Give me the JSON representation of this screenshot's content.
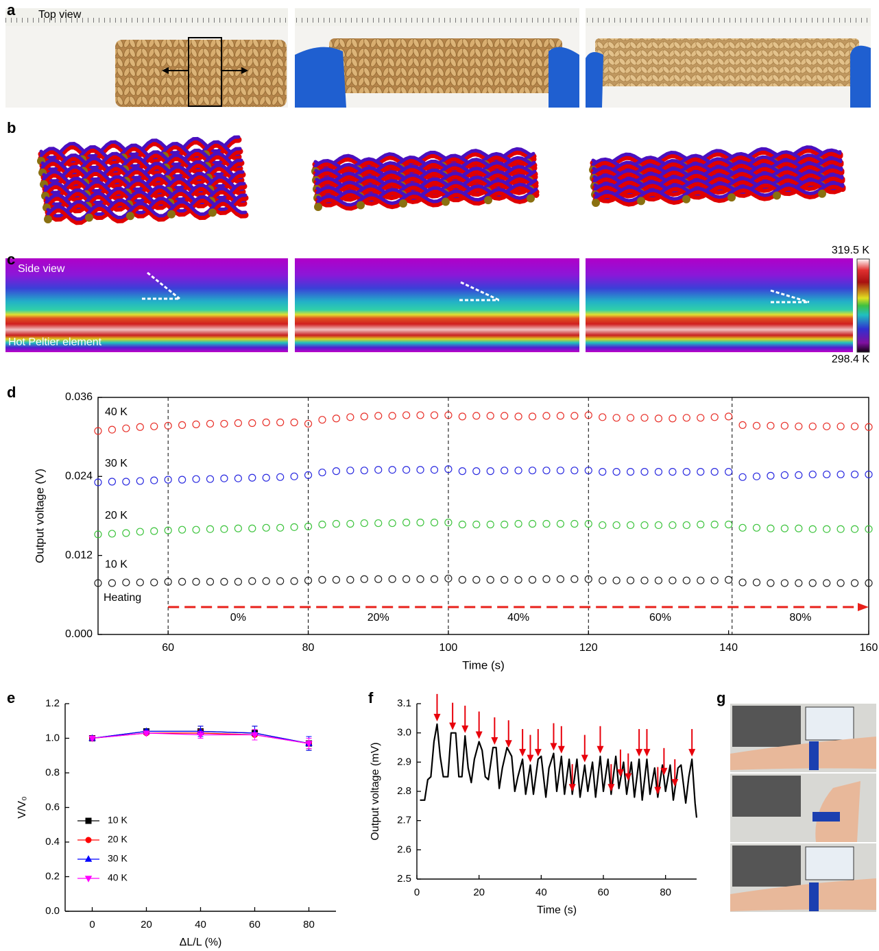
{
  "panel_labels": [
    "a",
    "b",
    "c",
    "d",
    "e",
    "f",
    "g"
  ],
  "photo_labels": {
    "top_view": "Top view",
    "side_view": "Side view",
    "hot_element": "Hot Peltier element",
    "scale_max": "319.5 K",
    "scale_min": "298.4 K"
  },
  "chart_data": [
    {
      "type": "scatter",
      "xlabel": "Time (s)",
      "ylabel": "Output voltage (V)",
      "xlim": [
        50,
        160
      ],
      "ylim": [
        0,
        0.036
      ],
      "xticks": [
        60,
        80,
        100,
        120,
        140,
        160
      ],
      "yticks": [
        {
          "value": 0,
          "label": "0.000"
        },
        0.012,
        0.024,
        0.036
      ],
      "vlines": [
        60,
        80,
        100,
        120,
        140.5
      ],
      "regions": [
        "0%",
        "20%",
        "40%",
        "60%",
        "80%"
      ],
      "annotation": "Heating",
      "arrow_color": "#e8201a",
      "x": [
        50,
        52,
        54,
        56,
        58,
        60,
        62,
        64,
        66,
        68,
        70,
        72,
        74,
        76,
        78,
        80,
        82,
        84,
        86,
        88,
        90,
        92,
        94,
        96,
        98,
        100,
        102,
        104,
        106,
        108,
        110,
        112,
        114,
        116,
        118,
        120,
        122,
        124,
        126,
        128,
        130,
        132,
        134,
        136,
        138,
        140,
        142,
        144,
        146,
        148,
        150,
        152,
        154,
        156,
        158,
        160
      ],
      "series": [
        {
          "name": "40 K",
          "color": "#e8312a",
          "values": [
            0.0309,
            0.0311,
            0.0313,
            0.0315,
            0.0316,
            0.0317,
            0.0318,
            0.0319,
            0.032,
            0.032,
            0.0321,
            0.0321,
            0.0322,
            0.0322,
            0.0322,
            0.032,
            0.0326,
            0.0328,
            0.033,
            0.0331,
            0.0332,
            0.0332,
            0.0333,
            0.0333,
            0.0333,
            0.0333,
            0.0331,
            0.0332,
            0.0332,
            0.0332,
            0.0331,
            0.0331,
            0.0332,
            0.0332,
            0.0332,
            0.0333,
            0.033,
            0.0329,
            0.0329,
            0.0329,
            0.0328,
            0.0328,
            0.0329,
            0.0329,
            0.033,
            0.0331,
            0.0318,
            0.0317,
            0.0317,
            0.0317,
            0.0316,
            0.0316,
            0.0316,
            0.0316,
            0.0316,
            0.0315
          ]
        },
        {
          "name": "30 K",
          "color": "#2a2ae0",
          "values": [
            0.0231,
            0.0232,
            0.0232,
            0.0233,
            0.0234,
            0.0235,
            0.0235,
            0.0236,
            0.0236,
            0.0237,
            0.0237,
            0.0238,
            0.0238,
            0.0239,
            0.024,
            0.0242,
            0.0246,
            0.0248,
            0.0249,
            0.0249,
            0.025,
            0.025,
            0.025,
            0.025,
            0.025,
            0.0251,
            0.0248,
            0.0248,
            0.0248,
            0.0249,
            0.0249,
            0.0249,
            0.0249,
            0.0249,
            0.0249,
            0.0249,
            0.0247,
            0.0247,
            0.0247,
            0.0247,
            0.0247,
            0.0247,
            0.0247,
            0.0247,
            0.0247,
            0.0247,
            0.0239,
            0.024,
            0.0241,
            0.0242,
            0.0242,
            0.0243,
            0.0243,
            0.0243,
            0.0243,
            0.0243
          ]
        },
        {
          "name": "20 K",
          "color": "#3ec43e",
          "values": [
            0.0152,
            0.0153,
            0.0154,
            0.0156,
            0.0157,
            0.0158,
            0.0159,
            0.0159,
            0.016,
            0.016,
            0.0161,
            0.0161,
            0.0162,
            0.0162,
            0.0163,
            0.0164,
            0.0167,
            0.0168,
            0.0168,
            0.0169,
            0.0169,
            0.0169,
            0.017,
            0.017,
            0.017,
            0.017,
            0.0167,
            0.0167,
            0.0167,
            0.0167,
            0.0168,
            0.0168,
            0.0168,
            0.0168,
            0.0168,
            0.0168,
            0.0166,
            0.0166,
            0.0166,
            0.0166,
            0.0166,
            0.0166,
            0.0166,
            0.0167,
            0.0167,
            0.0167,
            0.0162,
            0.0162,
            0.0161,
            0.0161,
            0.0161,
            0.016,
            0.016,
            0.016,
            0.016,
            0.016
          ]
        },
        {
          "name": "10 K",
          "color": "#222222",
          "values": [
            0.0078,
            0.0078,
            0.0079,
            0.0079,
            0.0079,
            0.008,
            0.008,
            0.008,
            0.008,
            0.008,
            0.008,
            0.0081,
            0.0081,
            0.0081,
            0.0081,
            0.0082,
            0.0083,
            0.0083,
            0.0083,
            0.0084,
            0.0084,
            0.0084,
            0.0084,
            0.0084,
            0.0084,
            0.0085,
            0.0083,
            0.0083,
            0.0083,
            0.0083,
            0.0083,
            0.0083,
            0.0084,
            0.0084,
            0.0084,
            0.0084,
            0.0082,
            0.0082,
            0.0082,
            0.0082,
            0.0082,
            0.0082,
            0.0082,
            0.0082,
            0.0082,
            0.0083,
            0.0079,
            0.0079,
            0.0078,
            0.0078,
            0.0078,
            0.0078,
            0.0078,
            0.0078,
            0.0078,
            0.0078
          ]
        }
      ]
    },
    {
      "type": "line",
      "xlabel": "ΔL/L (%)",
      "ylabel": "V/V₀",
      "xlim": [
        -10,
        90
      ],
      "ylim": [
        0,
        1.2
      ],
      "xticks": [
        0,
        20,
        40,
        60,
        80
      ],
      "yticks": [
        {
          "value": 0,
          "label": "0.0"
        },
        0.2,
        0.4,
        0.6,
        0.8,
        {
          "value": 1,
          "label": "1.0"
        },
        1.2
      ],
      "legend": "lower left",
      "x": [
        0,
        20,
        40,
        60,
        80
      ],
      "series": [
        {
          "name": "10 K",
          "color": "#000000",
          "marker": "square",
          "values": [
            1.0,
            1.04,
            1.04,
            1.03,
            0.97
          ],
          "errors": [
            0.01,
            0.01,
            0.03,
            0.04,
            0.04
          ]
        },
        {
          "name": "20 K",
          "color": "#ff0000",
          "marker": "circle",
          "values": [
            1.0,
            1.03,
            1.03,
            1.02,
            0.97
          ],
          "errors": [
            0.01,
            0.01,
            0.02,
            0.03,
            0.03
          ]
        },
        {
          "name": "30 K",
          "color": "#0000ff",
          "marker": "triangle-up",
          "values": [
            1.0,
            1.04,
            1.04,
            1.03,
            0.97
          ],
          "errors": [
            0.01,
            0.01,
            0.03,
            0.04,
            0.04
          ]
        },
        {
          "name": "40 K",
          "color": "#ff00ff",
          "marker": "triangle-down",
          "values": [
            1.0,
            1.03,
            1.02,
            1.02,
            0.97
          ],
          "errors": [
            0.01,
            0.01,
            0.02,
            0.03,
            0.03
          ]
        }
      ]
    },
    {
      "type": "line",
      "xlabel": "Time (s)",
      "ylabel": "Output voltage (mV)",
      "xlim": [
        0,
        90
      ],
      "ylim": [
        2.5,
        3.1
      ],
      "xticks": [
        0,
        20,
        40,
        60,
        80
      ],
      "yticks": [
        2.5,
        2.6,
        2.7,
        2.8,
        2.9,
        {
          "value": 3,
          "label": "3.0"
        },
        3.1
      ],
      "color": "#000000",
      "arrow_color": "#e8000b",
      "x": [
        1,
        2.5,
        3.5,
        4.5,
        5.5,
        6.5,
        7.5,
        8.5,
        10,
        11,
        12.5,
        13.5,
        14.5,
        15.5,
        16.5,
        17.5,
        18.5,
        20,
        21,
        22,
        23,
        24.5,
        25.5,
        26.5,
        27.5,
        29,
        30.5,
        31.5,
        32.5,
        34,
        35,
        36.5,
        37.5,
        39,
        40,
        41.5,
        42.5,
        44,
        45,
        46.5,
        47.5,
        49,
        50,
        51.5,
        52.5,
        54,
        55,
        56.5,
        57.5,
        59,
        60,
        61.5,
        62.5,
        64,
        65,
        66.5,
        67.5,
        69,
        70,
        71.5,
        72.5,
        74,
        75,
        76.5,
        77.5,
        79,
        80,
        81.5,
        82.5,
        84,
        85,
        86.5,
        87.5,
        88.5,
        89.5,
        90
      ],
      "values": [
        2.77,
        2.77,
        2.84,
        2.85,
        2.97,
        3.03,
        2.92,
        2.85,
        2.85,
        3.0,
        3.0,
        2.85,
        2.85,
        2.99,
        2.88,
        2.83,
        2.91,
        2.97,
        2.94,
        2.85,
        2.84,
        2.95,
        2.95,
        2.81,
        2.88,
        2.95,
        2.92,
        2.8,
        2.85,
        2.91,
        2.79,
        2.89,
        2.79,
        2.91,
        2.92,
        2.78,
        2.88,
        2.93,
        2.8,
        2.92,
        2.79,
        2.91,
        2.79,
        2.91,
        2.78,
        2.89,
        2.8,
        2.9,
        2.78,
        2.92,
        2.8,
        2.91,
        2.79,
        2.92,
        2.81,
        2.9,
        2.79,
        2.9,
        2.78,
        2.91,
        2.77,
        2.91,
        2.79,
        2.88,
        2.78,
        2.89,
        2.8,
        2.89,
        2.77,
        2.88,
        2.89,
        2.76,
        2.85,
        2.91,
        2.76,
        2.71
      ],
      "arrows": [
        6.5,
        11.5,
        15.5,
        20,
        25,
        29.5,
        34,
        36.5,
        39,
        44,
        46.5,
        50,
        54,
        59,
        62.5,
        65.5,
        68,
        71.5,
        74,
        77.5,
        79.5,
        83,
        88.5
      ]
    }
  ]
}
